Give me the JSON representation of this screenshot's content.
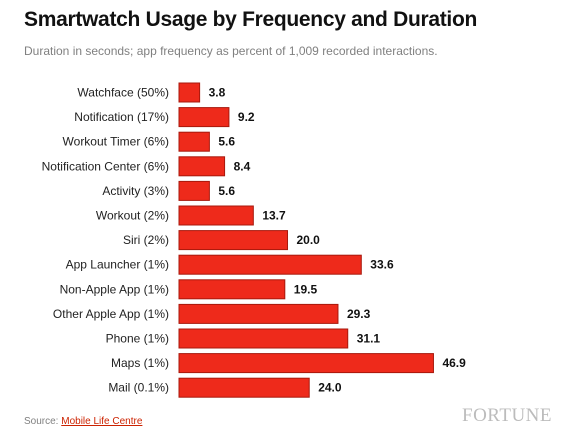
{
  "header": {
    "title": "Smartwatch Usage by Frequency and Duration",
    "subtitle": "Duration in seconds; app frequency as percent of 1,009 recorded interactions."
  },
  "footer": {
    "source_label": "Source:",
    "source_link": "Mobile Life Centre",
    "brand": "FORTUNE"
  },
  "chart_data": {
    "type": "bar",
    "orientation": "horizontal",
    "categories": [
      "Watchface (50%)",
      "Notification (17%)",
      "Workout Timer (6%)",
      "Notification Center (6%)",
      "Activity (3%)",
      "Workout (2%)",
      "Siri (2%)",
      "App Launcher (1%)",
      "Non-Apple App (1%)",
      "Other Apple App (1%)",
      "Phone (1%)",
      "Maps (1%)",
      "Mail (0.1%)"
    ],
    "values": [
      3.8,
      9.2,
      5.6,
      8.4,
      5.6,
      13.7,
      20.0,
      33.6,
      19.5,
      29.3,
      31.1,
      46.9,
      24.0
    ],
    "value_labels": [
      "3.8",
      "9.2",
      "5.6",
      "8.4",
      "5.6",
      "13.7",
      "20.0",
      "33.6",
      "19.5",
      "29.3",
      "31.1",
      "46.9",
      "24.0"
    ],
    "title": "Smartwatch Usage by Frequency and Duration",
    "xlabel": "",
    "ylabel": "",
    "xlim": [
      0,
      47
    ],
    "grid": false,
    "legend": "none",
    "bar_color": "#ee2a1b",
    "bar_edge_color": "#a8180c"
  }
}
